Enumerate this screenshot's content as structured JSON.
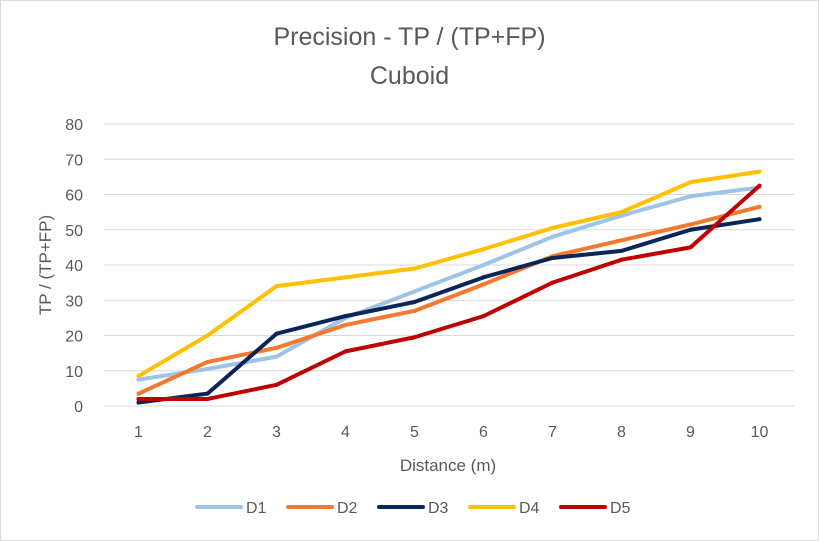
{
  "chart_data": {
    "type": "line",
    "title": "Precision - TP / (TP+FP)",
    "subtitle": "Cuboid",
    "xlabel": "Distance (m)",
    "ylabel": "TP / (TP+FP)",
    "ylim": [
      0,
      80
    ],
    "y_ticks": [
      0,
      10,
      20,
      30,
      40,
      50,
      60,
      70,
      80
    ],
    "grid": true,
    "legend_position": "bottom",
    "categories": [
      "1",
      "2",
      "3",
      "4",
      "5",
      "6",
      "7",
      "8",
      "9",
      "10"
    ],
    "series": [
      {
        "name": "D1",
        "color": "#9dc3e6",
        "values": [
          7.5,
          10.5,
          14,
          25,
          32.5,
          40,
          48,
          54,
          59.5,
          62
        ]
      },
      {
        "name": "D2",
        "color": "#f4792e",
        "values": [
          3.5,
          12.5,
          16.5,
          23,
          27,
          34.5,
          42.5,
          47,
          51.5,
          56.5
        ]
      },
      {
        "name": "D3",
        "color": "#0b2559",
        "values": [
          1,
          3.5,
          20.5,
          25.5,
          29.5,
          36.5,
          42,
          44,
          50,
          53
        ]
      },
      {
        "name": "D4",
        "color": "#ffc000",
        "values": [
          8.5,
          20,
          34,
          36.5,
          39,
          44.5,
          50.5,
          55,
          63.5,
          66.5
        ]
      },
      {
        "name": "D5",
        "color": "#c00000",
        "values": [
          2,
          2,
          6,
          15.5,
          19.5,
          25.5,
          35,
          41.5,
          45,
          62.5
        ]
      }
    ]
  }
}
